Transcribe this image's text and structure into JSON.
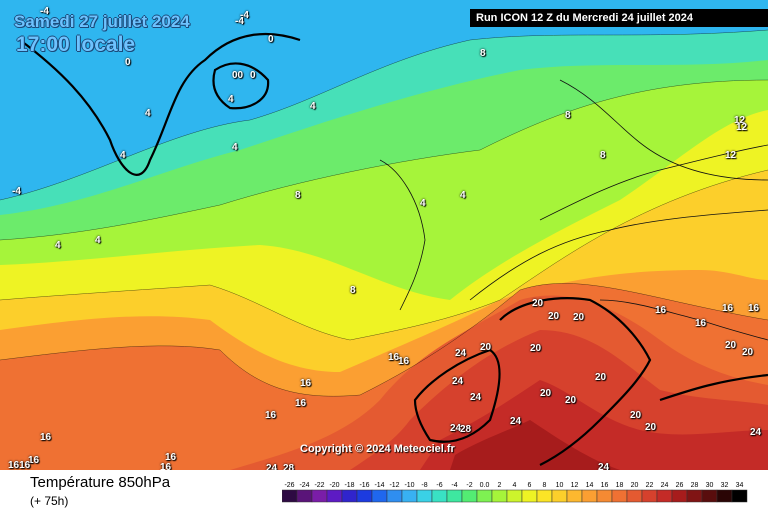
{
  "map": {
    "date_text": "Samedi 27 juillet 2024",
    "time_text": "17:00 locale",
    "run_text": "Run ICON 12 Z du Mercredi 24 juillet 2024",
    "copyright": "Copyright © 2024 Meteociel.fr",
    "isotherm_labels": [
      "-4",
      "-4",
      "-4",
      "0",
      "0",
      "00",
      "0",
      "4",
      "4",
      "4",
      "4",
      "8",
      "8",
      "8",
      "8",
      "8",
      "4",
      "4",
      "4",
      "4",
      "4",
      "-4",
      "12",
      "12",
      "12",
      "16",
      "16",
      "16",
      "16",
      "16",
      "16",
      "16",
      "1616",
      "16",
      "16",
      "16",
      "16",
      "16",
      "16",
      "20",
      "20",
      "20",
      "20",
      "20",
      "20",
      "20",
      "20",
      "20",
      "20",
      "20",
      "20",
      "24",
      "24",
      "24",
      "24",
      "24",
      "24",
      "24",
      "24",
      "28",
      "28"
    ]
  },
  "footer": {
    "parameter": "Température 850hPa",
    "lead_time": "(+ 75h)"
  },
  "legend": {
    "ticks": [
      "-26",
      "-24",
      "-22",
      "-20",
      "-18",
      "-16",
      "-14",
      "-12",
      "-10",
      "-8",
      "-6",
      "-4",
      "-2",
      "0.0",
      "2",
      "4",
      "6",
      "8",
      "10",
      "12",
      "14",
      "16",
      "18",
      "20",
      "22",
      "24",
      "26",
      "28",
      "30",
      "32",
      "34"
    ],
    "colors": [
      "#2e0a43",
      "#5a1479",
      "#7a1da8",
      "#5d1bc4",
      "#3024cc",
      "#1c3be0",
      "#1f67ee",
      "#2f8ef0",
      "#38b1f2",
      "#3ad1e6",
      "#39e1c4",
      "#3ee7a0",
      "#53ec73",
      "#7ef152",
      "#a6f43a",
      "#cdf42c",
      "#eef324",
      "#fbe426",
      "#fccf2b",
      "#fdb82f",
      "#fb9f32",
      "#f58a33",
      "#ef7133",
      "#e45a31",
      "#d6412d",
      "#c42b27",
      "#a71c1c",
      "#801414",
      "#590d0d",
      "#2a0505",
      "#000000"
    ]
  }
}
